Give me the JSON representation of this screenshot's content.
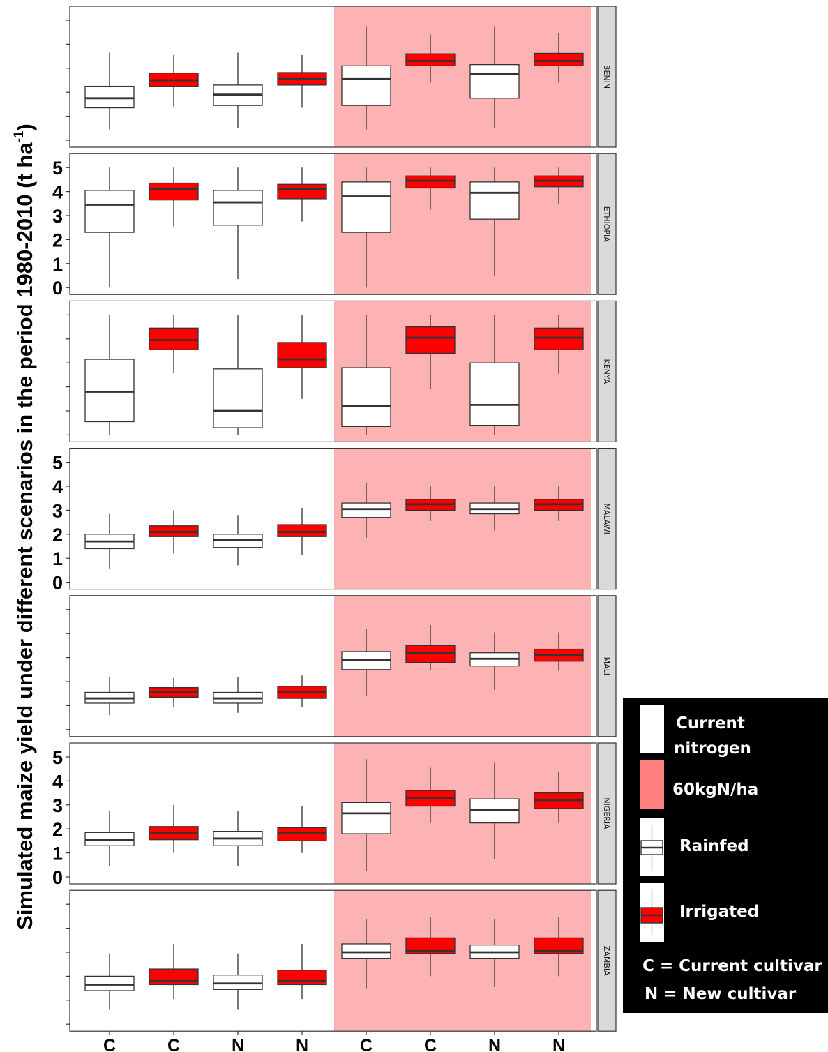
{
  "chart_data": {
    "type": "box",
    "ylabel_main": "Simulated maize yield under different scenarios in the period 1980-2010 (t ha",
    "ylabel_sup": "-1",
    "ylabel_end": ")",
    "categories": [
      "C",
      "C",
      "N",
      "N",
      "C",
      "C",
      "N",
      "N"
    ],
    "treatments": [
      "Rainfed",
      "Irrigated",
      "Rainfed",
      "Irrigated",
      "Rainfed",
      "Irrigated",
      "Rainfed",
      "Irrigated"
    ],
    "nitrogen": [
      "Current nitrogen",
      "Current nitrogen",
      "Current nitrogen",
      "Current nitrogen",
      "60kgN/ha",
      "60kgN/ha",
      "60kgN/ha",
      "60kgN/ha"
    ],
    "y_ticks": [
      "0",
      "1",
      "2",
      "3",
      "4",
      "5"
    ],
    "ylim": [
      0,
      5
    ],
    "colors": {
      "rainfed": "#ffffff",
      "irrigated": "#ff0000",
      "high_nitrogen_bg": "#fdb3b3",
      "strip": "#d9d9d9"
    },
    "panels": [
      {
        "country": "BENIN",
        "show_tick_labels": false,
        "boxes": [
          {
            "min": 0.45,
            "q1": 1.35,
            "median": 1.75,
            "q3": 2.25,
            "max": 3.65
          },
          {
            "min": 1.4,
            "q1": 2.25,
            "median": 2.5,
            "q3": 2.8,
            "max": 3.55
          },
          {
            "min": 0.5,
            "q1": 1.45,
            "median": 1.9,
            "q3": 2.3,
            "max": 3.65
          },
          {
            "min": 1.35,
            "q1": 2.3,
            "median": 2.55,
            "q3": 2.82,
            "max": 3.55
          },
          {
            "min": 0.45,
            "q1": 1.45,
            "median": 2.55,
            "q3": 3.1,
            "max": 4.75
          },
          {
            "min": 2.4,
            "q1": 3.1,
            "median": 3.3,
            "q3": 3.6,
            "max": 4.4
          },
          {
            "min": 0.5,
            "q1": 1.75,
            "median": 2.75,
            "q3": 3.15,
            "max": 4.75
          },
          {
            "min": 2.4,
            "q1": 3.1,
            "median": 3.3,
            "q3": 3.62,
            "max": 4.45
          }
        ]
      },
      {
        "country": "ETHIOPIA",
        "show_tick_labels": true,
        "boxes": [
          {
            "min": 0.0,
            "q1": 2.3,
            "median": 3.45,
            "q3": 4.05,
            "max": 5.0
          },
          {
            "min": 2.55,
            "q1": 3.65,
            "median": 4.1,
            "q3": 4.35,
            "max": 5.0
          },
          {
            "min": 0.35,
            "q1": 2.6,
            "median": 3.55,
            "q3": 4.05,
            "max": 5.0
          },
          {
            "min": 2.75,
            "q1": 3.7,
            "median": 4.1,
            "q3": 4.3,
            "max": 5.0
          },
          {
            "min": 0.0,
            "q1": 2.3,
            "median": 3.8,
            "q3": 4.4,
            "max": 5.0
          },
          {
            "min": 3.25,
            "q1": 4.15,
            "median": 4.45,
            "q3": 4.65,
            "max": 5.0
          },
          {
            "min": 0.5,
            "q1": 2.85,
            "median": 3.95,
            "q3": 4.4,
            "max": 5.0
          },
          {
            "min": 3.5,
            "q1": 4.2,
            "median": 4.45,
            "q3": 4.65,
            "max": 5.0
          }
        ]
      },
      {
        "country": "KENYA",
        "show_tick_labels": false,
        "boxes": [
          {
            "min": 0.0,
            "q1": 0.55,
            "median": 1.8,
            "q3": 3.15,
            "max": 5.0
          },
          {
            "min": 2.6,
            "q1": 3.55,
            "median": 3.95,
            "q3": 4.45,
            "max": 5.0
          },
          {
            "min": 0.0,
            "q1": 0.3,
            "median": 1.0,
            "q3": 2.75,
            "max": 5.0
          },
          {
            "min": 1.5,
            "q1": 2.8,
            "median": 3.15,
            "q3": 3.85,
            "max": 5.0
          },
          {
            "min": 0.0,
            "q1": 0.35,
            "median": 1.2,
            "q3": 2.8,
            "max": 5.0
          },
          {
            "min": 1.9,
            "q1": 3.4,
            "median": 4.05,
            "q3": 4.5,
            "max": 5.0
          },
          {
            "min": 0.0,
            "q1": 0.4,
            "median": 1.25,
            "q3": 3.0,
            "max": 5.0
          },
          {
            "min": 2.55,
            "q1": 3.55,
            "median": 4.05,
            "q3": 4.45,
            "max": 5.0
          }
        ]
      },
      {
        "country": "MALAWI",
        "show_tick_labels": true,
        "boxes": [
          {
            "min": 0.55,
            "q1": 1.4,
            "median": 1.7,
            "q3": 2.0,
            "max": 2.85
          },
          {
            "min": 1.2,
            "q1": 1.9,
            "median": 2.1,
            "q3": 2.35,
            "max": 3.0
          },
          {
            "min": 0.7,
            "q1": 1.45,
            "median": 1.75,
            "q3": 2.0,
            "max": 2.8
          },
          {
            "min": 1.15,
            "q1": 1.9,
            "median": 2.1,
            "q3": 2.4,
            "max": 3.1
          },
          {
            "min": 1.85,
            "q1": 2.7,
            "median": 3.05,
            "q3": 3.3,
            "max": 4.15
          },
          {
            "min": 2.55,
            "q1": 3.0,
            "median": 3.25,
            "q3": 3.45,
            "max": 4.0
          },
          {
            "min": 2.15,
            "q1": 2.85,
            "median": 3.05,
            "q3": 3.3,
            "max": 4.0
          },
          {
            "min": 2.55,
            "q1": 3.0,
            "median": 3.25,
            "q3": 3.45,
            "max": 4.0
          }
        ]
      },
      {
        "country": "MALI",
        "show_tick_labels": false,
        "boxes": [
          {
            "min": 0.6,
            "q1": 1.1,
            "median": 1.3,
            "q3": 1.55,
            "max": 2.2
          },
          {
            "min": 0.95,
            "q1": 1.35,
            "median": 1.55,
            "q3": 1.75,
            "max": 2.15
          },
          {
            "min": 0.7,
            "q1": 1.1,
            "median": 1.3,
            "q3": 1.55,
            "max": 2.2
          },
          {
            "min": 0.95,
            "q1": 1.3,
            "median": 1.55,
            "q3": 1.8,
            "max": 2.25
          },
          {
            "min": 1.4,
            "q1": 2.5,
            "median": 2.9,
            "q3": 3.25,
            "max": 4.2
          },
          {
            "min": 2.5,
            "q1": 2.8,
            "median": 3.2,
            "q3": 3.5,
            "max": 4.35
          },
          {
            "min": 1.65,
            "q1": 2.65,
            "median": 2.95,
            "q3": 3.2,
            "max": 4.05
          },
          {
            "min": 2.45,
            "q1": 2.85,
            "median": 3.1,
            "q3": 3.35,
            "max": 4.05
          }
        ]
      },
      {
        "country": "NIGERIA",
        "show_tick_labels": true,
        "boxes": [
          {
            "min": 0.45,
            "q1": 1.3,
            "median": 1.55,
            "q3": 1.85,
            "max": 2.75
          },
          {
            "min": 1.0,
            "q1": 1.55,
            "median": 1.85,
            "q3": 2.1,
            "max": 3.0
          },
          {
            "min": 0.45,
            "q1": 1.3,
            "median": 1.6,
            "q3": 1.9,
            "max": 2.75
          },
          {
            "min": 1.0,
            "q1": 1.5,
            "median": 1.85,
            "q3": 2.05,
            "max": 2.95
          },
          {
            "min": 0.25,
            "q1": 1.8,
            "median": 2.65,
            "q3": 3.1,
            "max": 4.9
          },
          {
            "min": 2.25,
            "q1": 2.95,
            "median": 3.3,
            "q3": 3.6,
            "max": 4.55
          },
          {
            "min": 0.75,
            "q1": 2.25,
            "median": 2.8,
            "q3": 3.25,
            "max": 4.75
          },
          {
            "min": 2.25,
            "q1": 2.85,
            "median": 3.2,
            "q3": 3.5,
            "max": 4.4
          }
        ]
      },
      {
        "country": "ZAMBIA",
        "show_tick_labels": false,
        "boxes": [
          {
            "min": 0.6,
            "q1": 1.4,
            "median": 1.65,
            "q3": 2.0,
            "max": 2.95
          },
          {
            "min": 1.05,
            "q1": 1.65,
            "median": 1.8,
            "q3": 2.3,
            "max": 3.35
          },
          {
            "min": 0.6,
            "q1": 1.45,
            "median": 1.7,
            "q3": 2.05,
            "max": 2.95
          },
          {
            "min": 1.05,
            "q1": 1.65,
            "median": 1.8,
            "q3": 2.25,
            "max": 3.35
          },
          {
            "min": 1.5,
            "q1": 2.75,
            "median": 3.0,
            "q3": 3.35,
            "max": 4.4
          },
          {
            "min": 2.0,
            "q1": 2.95,
            "median": 3.05,
            "q3": 3.6,
            "max": 4.45
          },
          {
            "min": 1.55,
            "q1": 2.75,
            "median": 3.0,
            "q3": 3.3,
            "max": 4.4
          },
          {
            "min": 2.0,
            "q1": 2.95,
            "median": 3.05,
            "q3": 3.6,
            "max": 4.45
          }
        ]
      }
    ]
  },
  "legend": {
    "current_nitrogen": "Current nitrogen",
    "high_nitrogen": "60kgN/ha",
    "rainfed": "Rainfed",
    "irrigated": "Irrigated",
    "cultivar_c": "C = Current cultivar",
    "cultivar_n": "N = New cultivar"
  }
}
